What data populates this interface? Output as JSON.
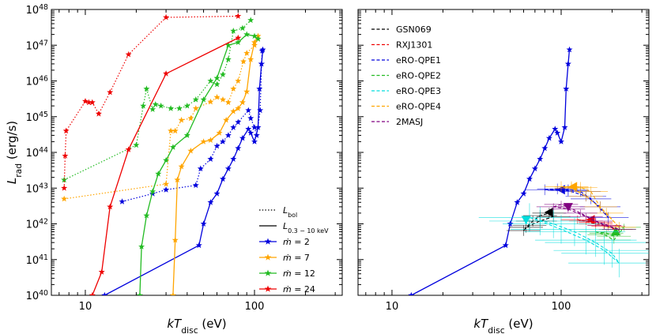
{
  "chart_data": [
    {
      "type": "line",
      "panel": "left",
      "xscale": "log",
      "yscale": "log",
      "xlim": [
        6.3,
        330
      ],
      "ylim": [
        1e+40,
        1e+48
      ],
      "xlabel_main": "kT",
      "xlabel_sub": "disc",
      "xlabel_unit": " (eV)",
      "ylabel_main": "L",
      "ylabel_sub": "rad",
      "ylabel_unit": " (erg/s)",
      "xticks": [
        {
          "v": 10,
          "label": "10"
        },
        {
          "v": 100,
          "label": "100"
        }
      ],
      "yticks": [
        {
          "v": 1e+40,
          "exp": "40"
        },
        {
          "v": 1e+41,
          "exp": "41"
        },
        {
          "v": 1e+42,
          "exp": "42"
        },
        {
          "v": 1e+43,
          "exp": "43"
        },
        {
          "v": 1e+44,
          "exp": "44"
        },
        {
          "v": 1e+45,
          "exp": "45"
        },
        {
          "v": 1e+46,
          "exp": "46"
        },
        {
          "v": 1e+47,
          "exp": "47"
        },
        {
          "v": 1e+48,
          "exp": "48"
        }
      ],
      "legend_position": "bottom-right",
      "legend_style": [
        {
          "name": "L_bol_key",
          "label_main": "L",
          "label_sub": "bol",
          "dash": "dotted"
        },
        {
          "name": "L_band_key",
          "label_main": "L",
          "label_sub": "0.3 − 10 keV",
          "dash": "solid"
        }
      ],
      "series": [
        {
          "name": "ṁ = 2",
          "legend_value": "2",
          "color": "#0000dd",
          "bol": [
            [
              16.5,
              4.2e+42
            ],
            [
              25,
              7e+42
            ],
            [
              30,
              9e+42
            ],
            [
              45,
              1.2e+43
            ],
            [
              48,
              3.5e+43
            ],
            [
              55,
              6.5e+43
            ],
            [
              60,
              1.5e+44
            ],
            [
              65,
              2e+44
            ],
            [
              70,
              3e+44
            ],
            [
              75,
              5e+44
            ],
            [
              80,
              7e+44
            ],
            [
              92,
              1.5e+45
            ],
            [
              95,
              9e+44
            ],
            [
              100,
              5e+44
            ],
            [
              103,
              3e+44
            ],
            [
              108,
              1.5e+45
            ],
            [
              110,
              3e+46
            ],
            [
              111,
              7e+46
            ]
          ],
          "band": [
            [
              13,
              1e+40
            ],
            [
              47,
              2.5e+41
            ],
            [
              50,
              1e+42
            ],
            [
              55,
              4e+42
            ],
            [
              60,
              7e+42
            ],
            [
              65,
              1.8e+43
            ],
            [
              70,
              3.5e+43
            ],
            [
              75,
              6.5e+43
            ],
            [
              80,
              1.3e+44
            ],
            [
              85,
              2.5e+44
            ],
            [
              92,
              4.5e+44
            ],
            [
              95,
              3.5e+44
            ],
            [
              100,
              2e+44
            ],
            [
              105,
              5e+44
            ],
            [
              107,
              6e+45
            ],
            [
              110,
              3e+46
            ],
            [
              112,
              7.5e+46
            ]
          ]
        },
        {
          "name": "ṁ = 7",
          "legend_value": "7",
          "color": "#ffa500",
          "bol": [
            [
              7.5,
              5e+42
            ],
            [
              30,
              1.3e+43
            ],
            [
              32,
              4e+44
            ],
            [
              34,
              4e+44
            ],
            [
              37,
              8e+44
            ],
            [
              42,
              9e+44
            ],
            [
              45,
              1.7e+45
            ],
            [
              55,
              2.6e+45
            ],
            [
              60,
              3.5e+45
            ],
            [
              65,
              3e+45
            ],
            [
              70,
              2.5e+45
            ],
            [
              75,
              6e+45
            ],
            [
              80,
              1e+46
            ],
            [
              86,
              3.5e+46
            ],
            [
              90,
              6e+46
            ],
            [
              100,
              1e+47
            ],
            [
              105,
              1.5e+47
            ]
          ],
          "band": [
            [
              33,
              1e+40
            ],
            [
              34,
              3.5e+41
            ],
            [
              35,
              1.7e+43
            ],
            [
              37,
              4e+43
            ],
            [
              42,
              1.1e+44
            ],
            [
              50,
              2e+44
            ],
            [
              55,
              2.2e+44
            ],
            [
              62,
              3.5e+44
            ],
            [
              68,
              8e+44
            ],
            [
              75,
              1.4e+45
            ],
            [
              80,
              1.7e+45
            ],
            [
              85,
              2.5e+45
            ],
            [
              90,
              5e+45
            ],
            [
              95,
              4e+46
            ],
            [
              100,
              1.2e+47
            ],
            [
              105,
              1.8e+47
            ]
          ]
        },
        {
          "name": "ṁ = 12",
          "legend_value": "12",
          "color": "#22bb22",
          "bol": [
            [
              7.5,
              1.7e+43
            ],
            [
              20,
              1.6e+44
            ],
            [
              22,
              2e+45
            ],
            [
              23,
              6e+45
            ],
            [
              25,
              1.6e+45
            ],
            [
              26,
              2.2e+45
            ],
            [
              28,
              2e+45
            ],
            [
              32,
              1.7e+45
            ],
            [
              36,
              1.7e+45
            ],
            [
              40,
              2e+45
            ],
            [
              45,
              3e+45
            ],
            [
              55,
              1e+46
            ],
            [
              60,
              8e+45
            ],
            [
              65,
              1.5e+46
            ],
            [
              70,
              4e+46
            ],
            [
              75,
              2.5e+47
            ],
            [
              85,
              3e+47
            ],
            [
              95,
              5e+47
            ]
          ],
          "band": [
            [
              21,
              1e+40
            ],
            [
              21.5,
              2.3e+41
            ],
            [
              23,
              1.7e+42
            ],
            [
              25,
              8e+42
            ],
            [
              27,
              2.5e+43
            ],
            [
              30,
              6e+43
            ],
            [
              33,
              1.4e+44
            ],
            [
              40,
              3e+44
            ],
            [
              50,
              3e+45
            ],
            [
              60,
              1.2e+46
            ],
            [
              70,
              1e+47
            ],
            [
              80,
              1.2e+47
            ],
            [
              90,
              2e+47
            ],
            [
              100,
              1.8e+47
            ],
            [
              105,
              1.5e+47
            ]
          ]
        },
        {
          "name": "ṁ = 24",
          "legend_value": "24",
          "color": "#ee0000",
          "bol": [
            [
              7.5,
              1e+43
            ],
            [
              7.6,
              8e+43
            ],
            [
              7.7,
              4e+44
            ],
            [
              10,
              2.7e+45
            ],
            [
              10.5,
              2.5e+45
            ],
            [
              11,
              2.5e+45
            ],
            [
              12,
              1.2e+45
            ],
            [
              14,
              4.8e+45
            ],
            [
              18,
              5.5e+46
            ],
            [
              30,
              6e+47
            ],
            [
              80,
              6.5e+47
            ]
          ],
          "band": [
            [
              11,
              1e+40
            ],
            [
              12.5,
              4.5e+40
            ],
            [
              14,
              3e+42
            ],
            [
              18,
              1.2e+44
            ],
            [
              30,
              1.6e+46
            ],
            [
              80,
              1.6e+47
            ]
          ]
        }
      ]
    },
    {
      "type": "scatter",
      "panel": "right",
      "xscale": "log",
      "yscale": "log",
      "xlim": [
        6.3,
        330
      ],
      "ylim": [
        1e+40,
        1e+48
      ],
      "xlabel_main": "kT",
      "xlabel_sub": "disc",
      "xlabel_unit": " (eV)",
      "xticks": [
        {
          "v": 10,
          "label": "10"
        },
        {
          "v": 100,
          "label": "100"
        }
      ],
      "legend_position": "top-left",
      "reference_curve": {
        "name": "ṁ = 2 (0.3–10 keV)",
        "color": "#0000dd",
        "points": [
          [
            13,
            1e+40
          ],
          [
            47,
            2.5e+41
          ],
          [
            50,
            1e+42
          ],
          [
            55,
            4e+42
          ],
          [
            60,
            7e+42
          ],
          [
            65,
            1.8e+43
          ],
          [
            70,
            3.5e+43
          ],
          [
            75,
            6.5e+43
          ],
          [
            80,
            1.3e+44
          ],
          [
            85,
            2.5e+44
          ],
          [
            92,
            4.5e+44
          ],
          [
            95,
            3.5e+44
          ],
          [
            100,
            2e+44
          ],
          [
            105,
            5e+44
          ],
          [
            107,
            6e+45
          ],
          [
            110,
            3e+46
          ],
          [
            112,
            7.5e+46
          ]
        ]
      },
      "series": [
        {
          "name": "GSN069",
          "color": "#000000",
          "points": [
            [
              60,
              6.5e+41
            ],
            [
              65,
              9e+41
            ],
            [
              75,
              1.2e+42
            ],
            [
              90,
              1.6e+42
            ],
            [
              85,
              2e+42
            ],
            [
              75,
              1.7e+42
            ],
            [
              68,
              1.2e+42
            ],
            [
              62,
              8e+41
            ]
          ],
          "xerr": 0.1,
          "yerr": 0.15,
          "marker": {
            "x": 85,
            "y": 2.1e+42,
            "dir": "left"
          }
        },
        {
          "name": "RXJ1301",
          "color": "#ee0000",
          "points": [
            [
              125,
              1.3e+42
            ],
            [
              140,
              1.2e+42
            ],
            [
              160,
              1.1e+42
            ],
            [
              180,
              9e+41
            ],
            [
              210,
              7e+41
            ],
            [
              190,
              8.5e+41
            ],
            [
              160,
              1e+42
            ]
          ],
          "xerr": 0.1,
          "yerr": 0.12,
          "marker": {
            "x": 150,
            "y": 1.3e+42,
            "dir": "left"
          }
        },
        {
          "name": "eRO-QPE1",
          "color": "#0000dd",
          "points": [
            [
              80,
              9e+42
            ],
            [
              95,
              9.5e+42
            ],
            [
              110,
              9e+42
            ],
            [
              130,
              8e+42
            ],
            [
              150,
              5e+42
            ],
            [
              190,
              1.5e+42
            ],
            [
              170,
              3e+42
            ],
            [
              140,
              6e+42
            ],
            [
              110,
              8.5e+42
            ]
          ],
          "xerr": 0.12,
          "yerr": 0.15,
          "marker": {
            "x": 100,
            "y": 9e+42,
            "dir": "left"
          }
        },
        {
          "name": "eRO-QPE2",
          "color": "#22bb22",
          "points": [
            [
              160,
              6e+41
            ],
            [
              185,
              5.5e+41
            ],
            [
              205,
              4.5e+41
            ],
            [
              220,
              7e+41
            ],
            [
              235,
              8e+41
            ],
            [
              205,
              3.5e+41
            ],
            [
              180,
              5e+41
            ]
          ],
          "xerr": 0.1,
          "yerr": 0.1,
          "marker": {
            "x": 210,
            "y": 6e+41,
            "dir": "up"
          }
        },
        {
          "name": "eRO-QPE3",
          "color": "#00dddd",
          "points": [
            [
              65,
              1.5e+42
            ],
            [
              90,
              1e+42
            ],
            [
              120,
              6e+41
            ],
            [
              160,
              3e+41
            ],
            [
              200,
              1.5e+41
            ],
            [
              220,
              8e+40
            ],
            [
              180,
              1.8e+41
            ],
            [
              140,
              3.5e+41
            ],
            [
              100,
              7e+41
            ],
            [
              75,
              1.2e+42
            ]
          ],
          "xerr": 0.3,
          "yerr": 0.4,
          "marker": {
            "x": 62,
            "y": 1.3e+42,
            "dir": "down"
          }
        },
        {
          "name": "eRO-QPE4",
          "color": "#ffa500",
          "points": [
            [
              100,
              1.1e+43
            ],
            [
              115,
              1.1e+43
            ],
            [
              130,
              1.05e+43
            ],
            [
              150,
              8e+42
            ],
            [
              170,
              3e+42
            ],
            [
              220,
              8e+41
            ],
            [
              185,
              2e+42
            ],
            [
              140,
              6e+42
            ],
            [
              115,
              1e+43
            ]
          ],
          "xerr": 0.1,
          "yerr": 0.15,
          "marker": {
            "x": 118,
            "y": 1.1e+43,
            "dir": "left"
          }
        },
        {
          "name": "2MASJ",
          "color": "#800080",
          "points": [
            [
              90,
              3e+42
            ],
            [
              100,
              3.5e+42
            ],
            [
              110,
              3e+42
            ],
            [
              130,
              2e+42
            ],
            [
              160,
              1.2e+42
            ],
            [
              220,
              7e+41
            ],
            [
              180,
              9e+41
            ],
            [
              140,
              1.6e+42
            ],
            [
              110,
              2.6e+42
            ]
          ],
          "xerr": 0.1,
          "yerr": 0.1,
          "marker": {
            "x": 110,
            "y": 3e+42,
            "dir": "down"
          }
        }
      ]
    }
  ]
}
